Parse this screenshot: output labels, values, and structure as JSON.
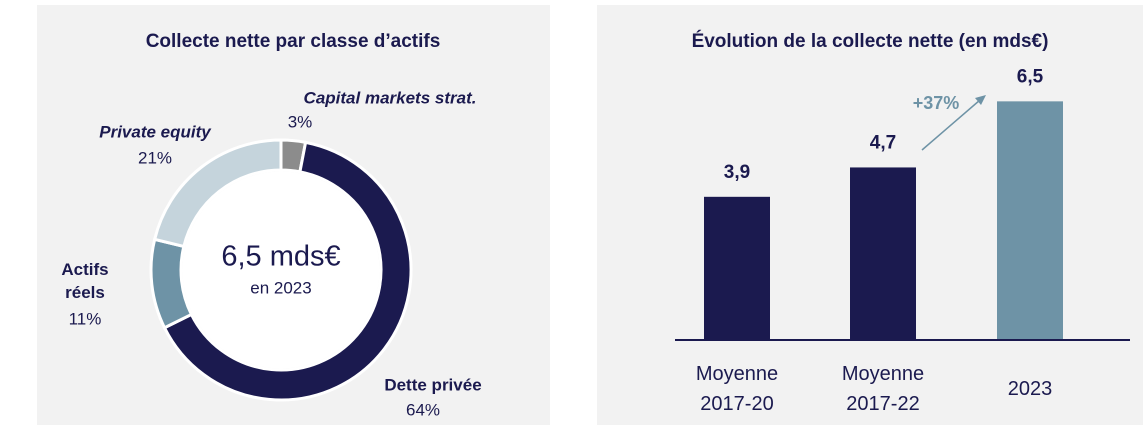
{
  "chart_data": [
    {
      "type": "donut",
      "title": "Collecte nette par classe d’actifs",
      "center_label": "6,5 mds€",
      "center_sublabel": "en 2023",
      "categories": [
        "Capital markets strat.",
        "Dette privée",
        "Actifs réels",
        "Private equity"
      ],
      "values": [
        3,
        64,
        11,
        21
      ],
      "value_labels": [
        "3%",
        "64%",
        "11%",
        "21%"
      ],
      "colors": [
        "#8c8c8c",
        "#1b1a4f",
        "#6e93a6",
        "#c5d4dc"
      ]
    },
    {
      "type": "bar",
      "title": "Évolution de la collecte nette (en mds€)",
      "categories": [
        "Moyenne 2017-20",
        "Moyenne 2017-22",
        "2023"
      ],
      "values": [
        3.9,
        4.7,
        6.5
      ],
      "value_labels": [
        "3,9",
        "4,7",
        "6,5"
      ],
      "colors": [
        "#1b1a4f",
        "#1b1a4f",
        "#6e93a6"
      ],
      "ylim": [
        0,
        7
      ],
      "annotation": "+37%"
    }
  ]
}
